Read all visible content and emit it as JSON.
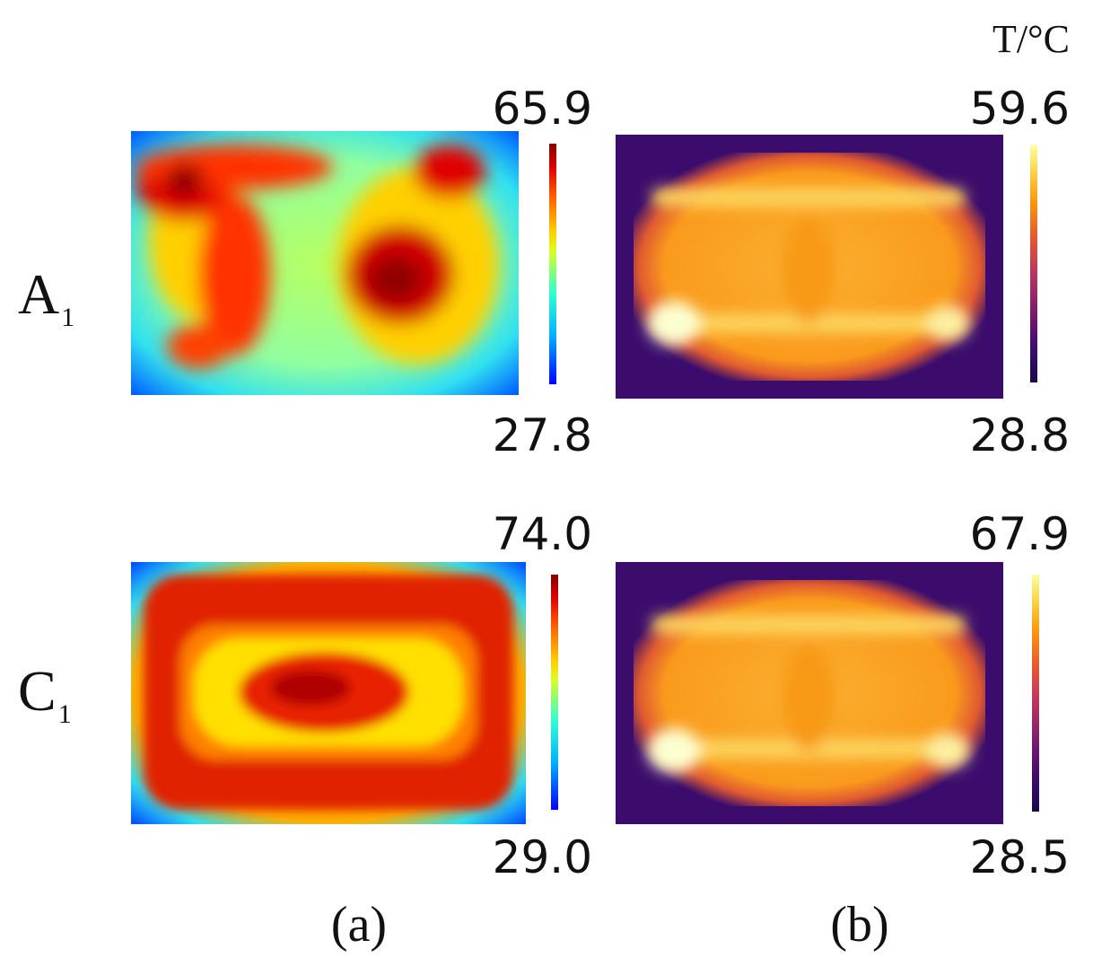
{
  "header": {
    "unit_label": "T/°C"
  },
  "rows": [
    {
      "label_main": "A",
      "label_sub": "1"
    },
    {
      "label_main": "C",
      "label_sub": "1"
    }
  ],
  "panels": [
    {
      "label": "(a)",
      "colormap": "jet"
    },
    {
      "label": "(b)",
      "colormap": "inferno"
    }
  ],
  "chart_data": {
    "type": "heatmap",
    "title": "",
    "description_unit": "T/°C",
    "panels": [
      {
        "row": "A1",
        "column": "(a)",
        "colormap": "jet",
        "max": "65.9",
        "min": "27.8"
      },
      {
        "row": "A1",
        "column": "(b)",
        "colormap": "inferno",
        "max": "59.6",
        "min": "28.8"
      },
      {
        "row": "C1",
        "column": "(a)",
        "colormap": "jet",
        "max": "74.0",
        "min": "29.0"
      },
      {
        "row": "C1",
        "column": "(b)",
        "colormap": "inferno",
        "max": "67.9",
        "min": "28.5"
      }
    ],
    "colors": {
      "jet": [
        "#0000ff",
        "#00b0ff",
        "#30ffd0",
        "#d8ff28",
        "#ffd000",
        "#ff6000",
        "#e00000",
        "#880000"
      ],
      "inferno": [
        "#1a0a48",
        "#3c0c6c",
        "#7c1c6c",
        "#b83660",
        "#e85a30",
        "#fa9610",
        "#f8d040",
        "#fcffa4"
      ]
    }
  }
}
